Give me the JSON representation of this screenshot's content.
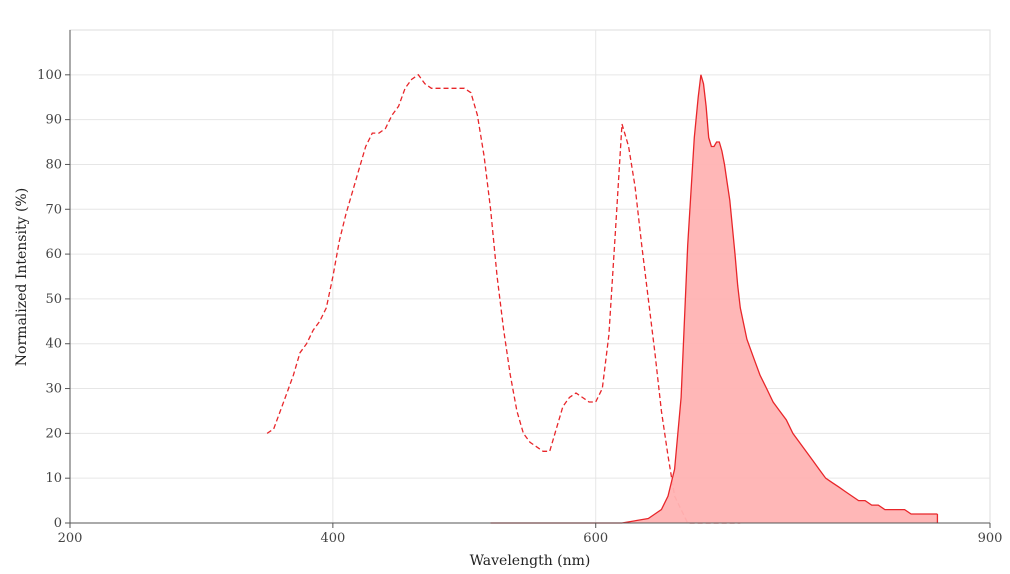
{
  "chart_data": {
    "type": "line",
    "title": "",
    "xlabel": "Wavelength (nm)",
    "ylabel": "Normalized Intensity (%)",
    "xlim": [
      200,
      900
    ],
    "ylim": [
      0,
      110
    ],
    "xticks": [
      200,
      400,
      600,
      900
    ],
    "yticks": [
      0,
      10,
      20,
      30,
      40,
      50,
      60,
      70,
      80,
      90,
      100
    ],
    "grid": true,
    "colors": {
      "series": "#e8262a",
      "fill": "#ffb3b3",
      "axis": "#555555",
      "grid": "#e6e6e6"
    },
    "series": [
      {
        "style": "dashed",
        "x": [
          350,
          355,
          360,
          365,
          370,
          375,
          380,
          385,
          390,
          395,
          400,
          405,
          410,
          415,
          420,
          425,
          430,
          435,
          440,
          445,
          450,
          455,
          460,
          465,
          470,
          475,
          480,
          485,
          490,
          495,
          500,
          505,
          510,
          515,
          520,
          525,
          530,
          535,
          540,
          545,
          550,
          555,
          560,
          565,
          570,
          575,
          580,
          585,
          590,
          595,
          600,
          605,
          610,
          615,
          620,
          625,
          630,
          635,
          640,
          645,
          650,
          655,
          660,
          665,
          670,
          675,
          680,
          685,
          690,
          695,
          700,
          705,
          710
        ],
        "y": [
          20,
          21,
          25,
          29,
          33,
          38,
          40,
          43,
          45,
          48,
          55,
          63,
          69,
          74,
          79,
          84,
          87,
          87,
          88,
          91,
          93,
          97,
          99,
          100,
          98,
          97,
          97,
          97,
          97,
          97,
          97,
          96,
          91,
          82,
          70,
          55,
          43,
          33,
          25,
          20,
          18,
          17,
          16,
          16,
          21,
          26,
          28,
          29,
          28,
          27,
          27,
          30,
          42,
          65,
          89,
          84,
          75,
          62,
          50,
          38,
          25,
          15,
          6,
          3,
          0,
          0,
          0,
          0,
          0,
          0,
          0,
          0,
          0
        ]
      },
      {
        "style": "solid-filled",
        "x": [
          520,
          540,
          560,
          580,
          600,
          620,
          640,
          645,
          650,
          655,
          660,
          665,
          670,
          675,
          678,
          680,
          682,
          684,
          686,
          688,
          690,
          692,
          694,
          696,
          698,
          700,
          702,
          704,
          706,
          708,
          710,
          715,
          720,
          725,
          730,
          735,
          740,
          745,
          750,
          755,
          760,
          765,
          770,
          775,
          780,
          785,
          790,
          795,
          800,
          805,
          810,
          815,
          820,
          825,
          830,
          835,
          840,
          845,
          850,
          855,
          860
        ],
        "y": [
          0,
          0,
          0,
          0,
          0,
          0,
          1,
          2,
          3,
          6,
          12,
          28,
          62,
          86,
          95,
          100,
          98,
          93,
          86,
          84,
          84,
          85,
          85,
          83,
          80,
          76,
          72,
          66,
          60,
          53,
          48,
          41,
          37,
          33,
          30,
          27,
          25,
          23,
          20,
          18,
          16,
          14,
          12,
          10,
          9,
          8,
          7,
          6,
          5,
          5,
          4,
          4,
          3,
          3,
          3,
          3,
          2,
          2,
          2,
          2,
          2
        ]
      }
    ]
  }
}
